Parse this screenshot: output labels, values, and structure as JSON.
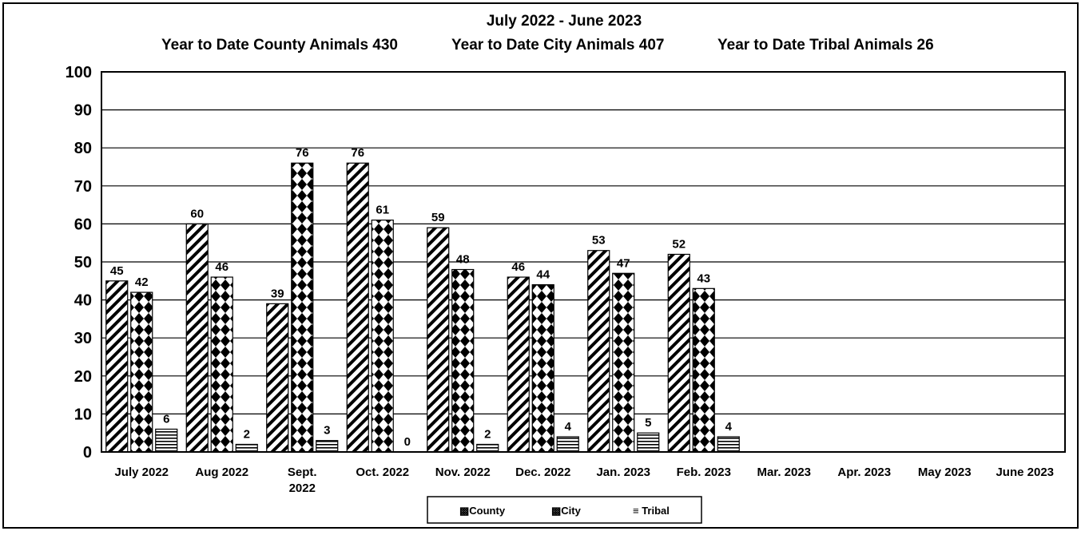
{
  "chart_data": {
    "type": "bar",
    "title": "July 2022 - June 2023",
    "subtitles": [
      "Year to Date County Animals 430",
      "Year to Date City Animals 407",
      "Year to Date Tribal Animals  26"
    ],
    "categories": [
      [
        "July 2022"
      ],
      [
        "Aug 2022"
      ],
      [
        "Sept.",
        "2022"
      ],
      [
        "Oct. 2022"
      ],
      [
        "Nov. 2022"
      ],
      [
        "Dec. 2022"
      ],
      [
        "Jan. 2023"
      ],
      [
        "Feb. 2023"
      ],
      [
        "Mar. 2023"
      ],
      [
        "Apr. 2023"
      ],
      [
        "May 2023"
      ],
      [
        "June 2023"
      ]
    ],
    "series": [
      {
        "name": "County",
        "values": [
          45,
          60,
          39,
          76,
          59,
          46,
          53,
          52,
          null,
          null,
          null,
          null
        ]
      },
      {
        "name": "City",
        "values": [
          42,
          46,
          76,
          61,
          48,
          44,
          47,
          43,
          null,
          null,
          null,
          null
        ]
      },
      {
        "name": "Tribal",
        "values": [
          6,
          2,
          3,
          0,
          2,
          4,
          5,
          4,
          null,
          null,
          null,
          null
        ]
      }
    ],
    "ylim": [
      0,
      100
    ],
    "yticks": [
      0,
      10,
      20,
      30,
      40,
      50,
      60,
      70,
      80,
      90,
      100
    ],
    "grid": true,
    "legend_position": "bottom-center",
    "legend_labels": [
      "▩County",
      "▩City",
      "≡ Tribal"
    ]
  }
}
